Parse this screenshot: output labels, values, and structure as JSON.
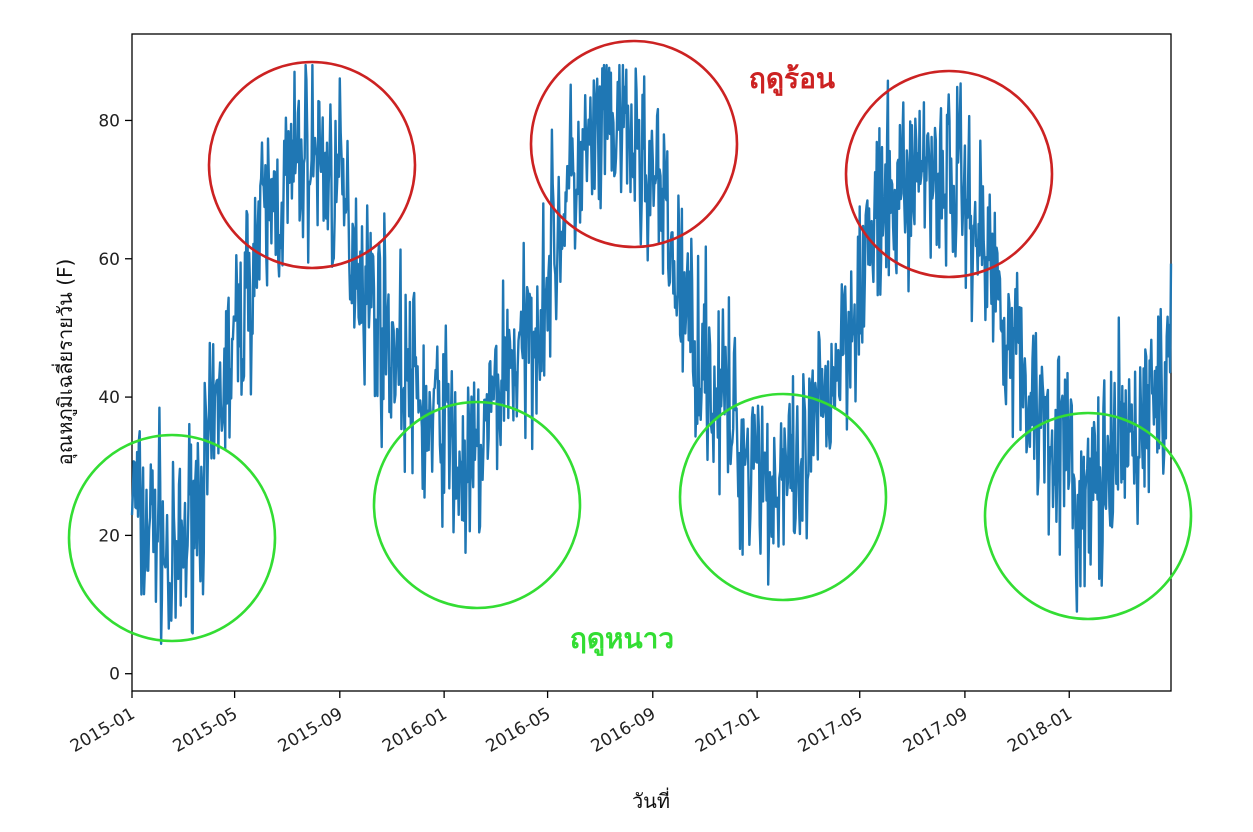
{
  "chart_data": {
    "type": "line",
    "xlabel": "วันที่",
    "ylabel": "อุณหภูมิเฉลี่ยรายวัน (F)",
    "x_range": [
      "2015-01-01",
      "2018-04-30"
    ],
    "ylim": [
      -2.5,
      92.5
    ],
    "y_ticks": [
      0,
      20,
      40,
      60,
      80
    ],
    "x_tick_labels": [
      "2015-01",
      "2015-05",
      "2015-09",
      "2016-01",
      "2016-05",
      "2016-09",
      "2017-01",
      "2017-05",
      "2017-09",
      "2018-01"
    ],
    "grid": false,
    "legend": "none",
    "series": [
      {
        "color": "#1f77b4",
        "x": [
          "2015-01-01",
          "2015-01-15",
          "2015-02-01",
          "2015-02-15",
          "2015-03-01",
          "2015-03-15",
          "2015-04-01",
          "2015-04-15",
          "2015-05-01",
          "2015-05-15",
          "2015-06-01",
          "2015-06-15",
          "2015-07-01",
          "2015-07-15",
          "2015-08-01",
          "2015-08-15",
          "2015-09-01",
          "2015-09-15",
          "2015-10-01",
          "2015-10-15",
          "2015-11-01",
          "2015-11-15",
          "2015-12-01",
          "2015-12-15",
          "2016-01-01",
          "2016-01-15",
          "2016-02-01",
          "2016-02-15",
          "2016-03-01",
          "2016-03-15",
          "2016-04-01",
          "2016-04-15",
          "2016-05-01",
          "2016-05-15",
          "2016-06-01",
          "2016-06-15",
          "2016-07-01",
          "2016-07-15",
          "2016-08-01",
          "2016-08-15",
          "2016-09-01",
          "2016-09-15",
          "2016-10-01",
          "2016-10-15",
          "2016-11-01",
          "2016-11-15",
          "2016-12-01",
          "2016-12-15",
          "2017-01-01",
          "2017-01-15",
          "2017-02-01",
          "2017-02-15",
          "2017-03-01",
          "2017-03-15",
          "2017-04-01",
          "2017-04-15",
          "2017-05-01",
          "2017-05-15",
          "2017-06-01",
          "2017-06-15",
          "2017-07-01",
          "2017-07-15",
          "2017-08-01",
          "2017-08-15",
          "2017-09-01",
          "2017-09-15",
          "2017-10-01",
          "2017-10-15",
          "2017-11-01",
          "2017-11-15",
          "2017-12-01",
          "2017-12-15",
          "2018-01-01",
          "2018-01-15",
          "2018-02-01",
          "2018-02-15",
          "2018-03-01",
          "2018-03-15",
          "2018-04-01",
          "2018-04-15",
          "2018-04-30"
        ],
        "values": [
          27,
          20,
          23,
          12,
          18,
          25,
          30,
          41,
          47,
          55,
          64,
          68,
          70,
          74,
          76,
          73,
          70,
          63,
          57,
          52,
          48,
          44,
          40,
          35,
          38,
          30,
          28,
          33,
          40,
          46,
          45,
          50,
          58,
          65,
          72,
          74,
          77,
          79,
          78,
          75,
          72,
          65,
          57,
          50,
          46,
          40,
          38,
          31,
          34,
          26,
          30,
          24,
          31,
          37,
          44,
          50,
          57,
          63,
          66,
          70,
          72,
          74,
          73,
          72,
          70,
          65,
          59,
          54,
          46,
          40,
          38,
          35,
          30,
          21,
          29,
          25,
          34,
          33,
          38,
          42,
          41
        ]
      }
    ],
    "annotations": {
      "hot": {
        "label": "ฤดูร้อน",
        "color": "#cc2222"
      },
      "cold": {
        "label": "ฤดูหนาว",
        "color": "#33dd33"
      }
    }
  }
}
